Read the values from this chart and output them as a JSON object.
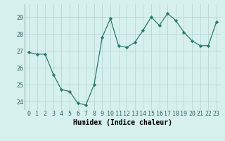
{
  "x": [
    0,
    1,
    2,
    3,
    4,
    5,
    6,
    7,
    8,
    9,
    10,
    11,
    12,
    13,
    14,
    15,
    16,
    17,
    18,
    19,
    20,
    21,
    22,
    23
  ],
  "y": [
    26.9,
    26.8,
    26.8,
    25.6,
    24.7,
    24.6,
    23.9,
    23.8,
    25.0,
    27.8,
    28.9,
    27.3,
    27.2,
    27.5,
    28.2,
    29.0,
    28.5,
    29.2,
    28.8,
    28.1,
    27.6,
    27.3,
    27.3,
    28.7
  ],
  "line_color": "#2d7a6a",
  "marker": "D",
  "marker_size": 2.2,
  "bg_color": "#d6f0ee",
  "grid_color": "#b8d8d4",
  "xlabel": "Humidex (Indice chaleur)",
  "ylim": [
    23.5,
    29.75
  ],
  "xlim": [
    -0.5,
    23.5
  ],
  "yticks": [
    24,
    25,
    26,
    27,
    28,
    29
  ],
  "xticks": [
    0,
    1,
    2,
    3,
    4,
    5,
    6,
    7,
    8,
    9,
    10,
    11,
    12,
    13,
    14,
    15,
    16,
    17,
    18,
    19,
    20,
    21,
    22,
    23
  ],
  "tick_fontsize": 6,
  "xlabel_fontsize": 7,
  "line_width": 0.9
}
